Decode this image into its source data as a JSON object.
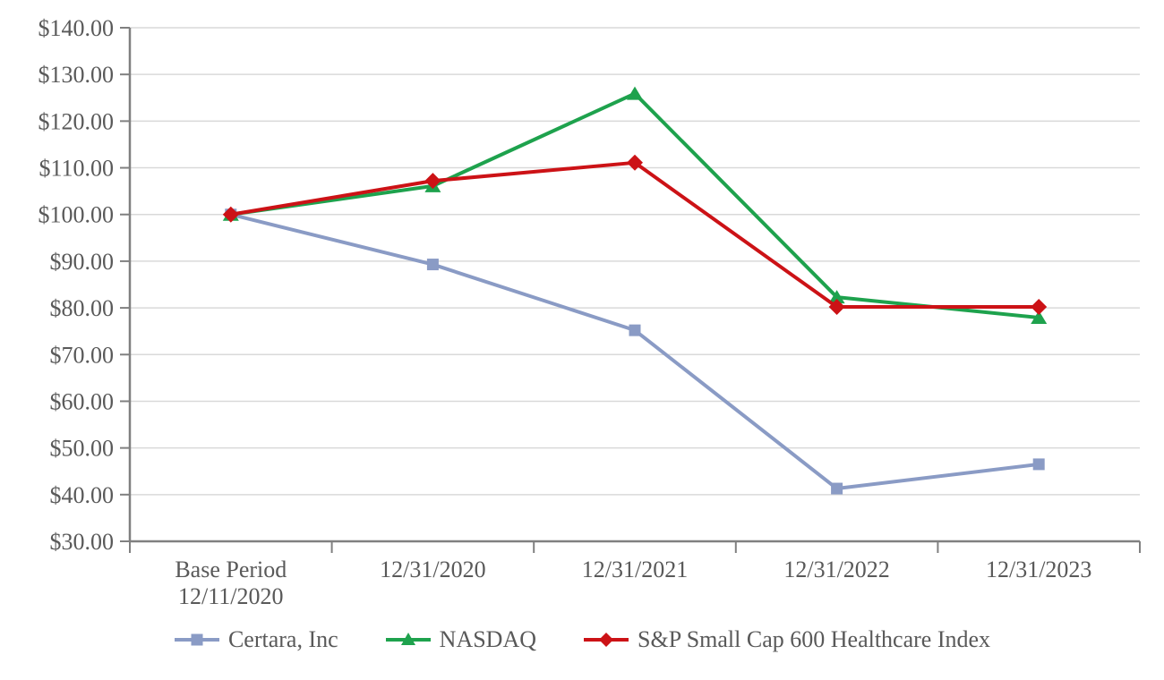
{
  "chart_data": {
    "type": "line",
    "title": "",
    "xlabel": "",
    "ylabel": "",
    "categories": [
      "Base Period\n12/11/2020",
      "12/31/2020",
      "12/31/2021",
      "12/31/2022",
      "12/31/2023"
    ],
    "series": [
      {
        "name": "Certara, Inc",
        "color": "#8A9BC5",
        "marker": "square",
        "values": [
          100.0,
          89.3,
          75.2,
          41.3,
          46.5
        ]
      },
      {
        "name": "NASDAQ",
        "color": "#1EA24D",
        "marker": "triangle",
        "values": [
          100.0,
          106.1,
          125.9,
          82.3,
          77.9
        ]
      },
      {
        "name": "S&P Small Cap 600 Healthcare Index",
        "color": "#CC1216",
        "marker": "diamond",
        "values": [
          100.0,
          107.2,
          111.1,
          80.2,
          80.2
        ]
      }
    ],
    "y_ticks": [
      {
        "value": 140,
        "label": "$140.00"
      },
      {
        "value": 130,
        "label": "$130.00"
      },
      {
        "value": 120,
        "label": "$120.00"
      },
      {
        "value": 110,
        "label": "$110.00"
      },
      {
        "value": 100,
        "label": "$100.00"
      },
      {
        "value": 90,
        "label": "$90.00"
      },
      {
        "value": 80,
        "label": "$80.00"
      },
      {
        "value": 70,
        "label": "$70.00"
      },
      {
        "value": 60,
        "label": "$60.00"
      },
      {
        "value": 50,
        "label": "$50.00"
      },
      {
        "value": 40,
        "label": "$40.00"
      },
      {
        "value": 30,
        "label": "$30.00"
      }
    ],
    "ylim": [
      30,
      140
    ],
    "grid": true,
    "legend_position": "bottom",
    "colors": {
      "axis": "#808080",
      "gridline": "#D9D9D9",
      "tick_label": "#595959"
    }
  }
}
